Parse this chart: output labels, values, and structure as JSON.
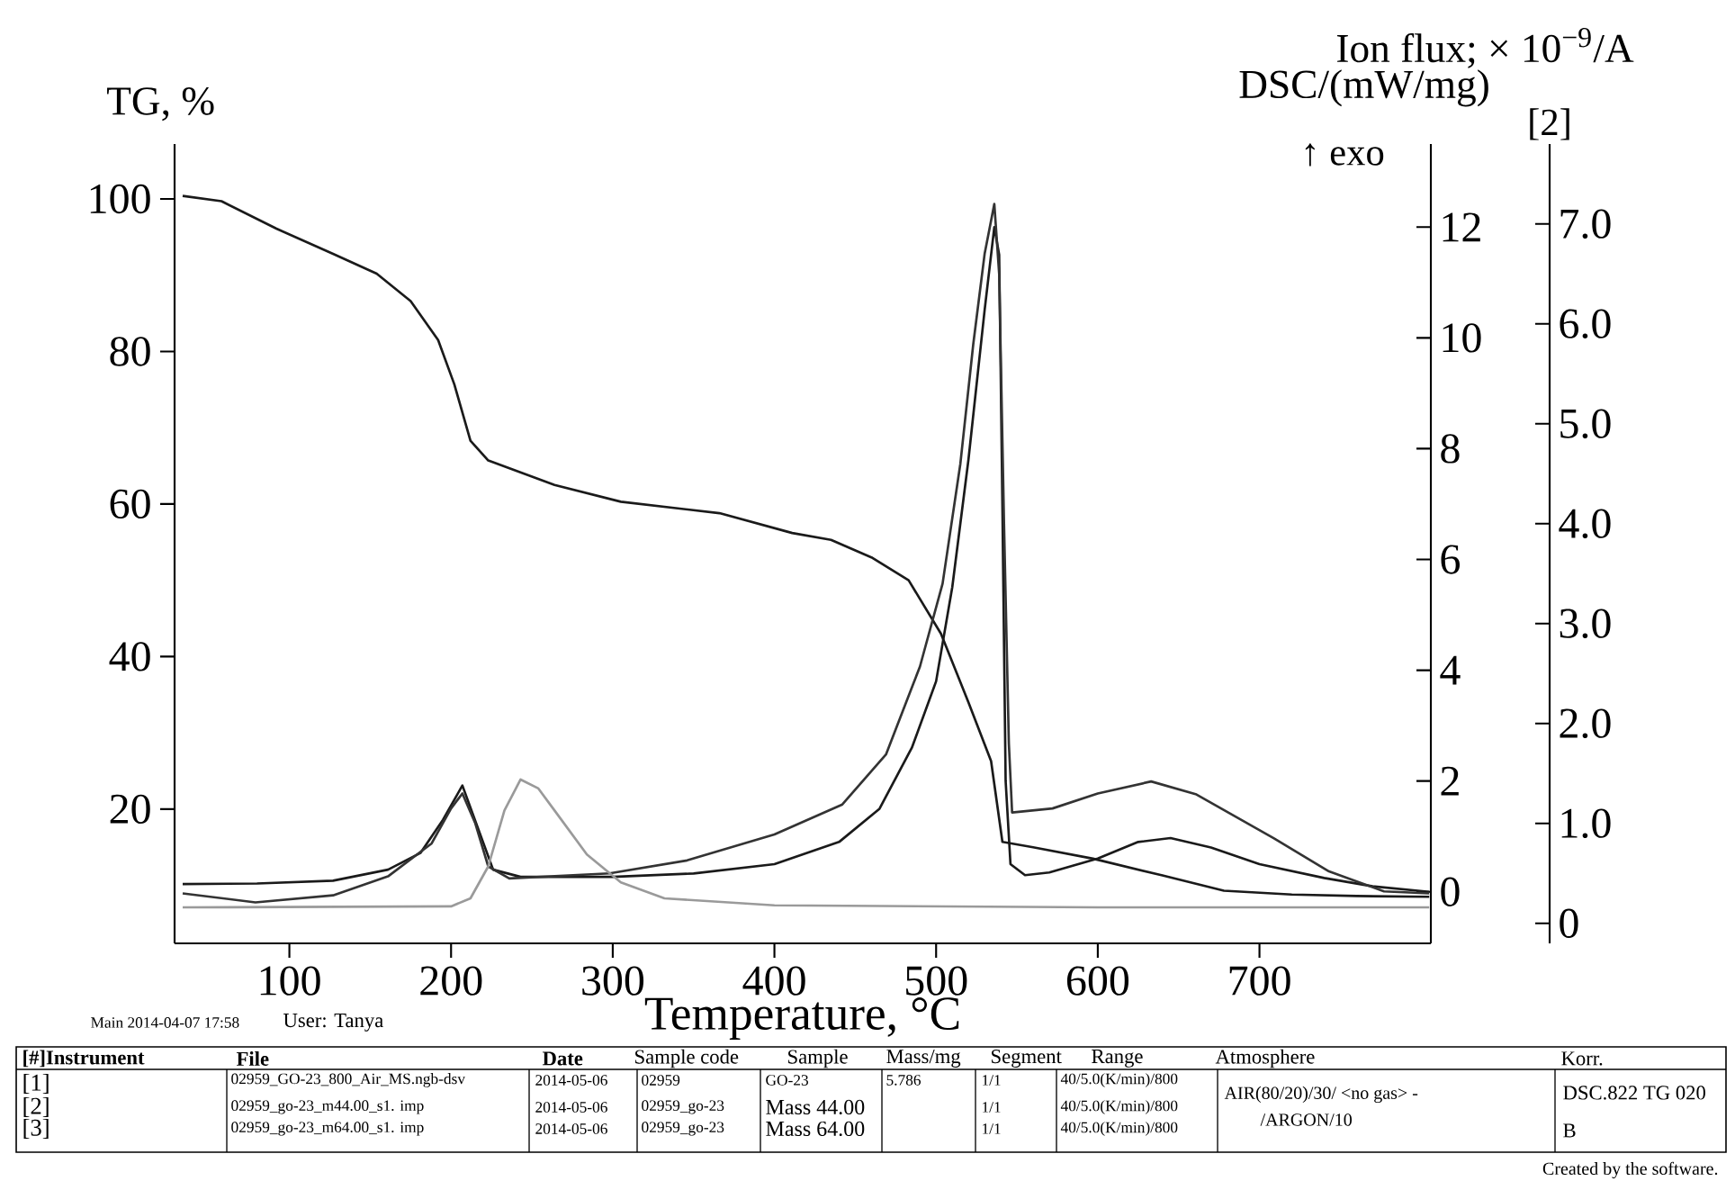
{
  "chart_data": {
    "type": "line",
    "xlabel": "Temperature, °C",
    "ylabel": "TG, %",
    "y2label": "DSC/(mW/mg)",
    "y3label": "Ion flux; × 10$^{−9}$/A",
    "xlim": [
      29,
      806
    ],
    "xticks": [
      100,
      200,
      300,
      400,
      500,
      600,
      700
    ],
    "ylim": [
      2.4,
      107.2
    ],
    "yticks": [
      20,
      40,
      60,
      80,
      100
    ],
    "y2lim": [
      -0.93,
      13.5
    ],
    "y2ticks": [
      0,
      2,
      4,
      6,
      8,
      10,
      12
    ],
    "y3lim": [
      -0.2,
      7.8
    ],
    "y3ticks": [
      0,
      {
        "value": 1,
        "label": "1.0"
      },
      {
        "value": 2,
        "label": "2.0"
      },
      {
        "value": 3,
        "label": "3.0"
      },
      {
        "value": 4,
        "label": "4.0"
      },
      {
        "value": 5,
        "label": "5.0"
      },
      {
        "value": 6,
        "label": "6.0"
      },
      {
        "value": 7,
        "label": "7.0"
      }
    ],
    "series": [
      {
        "axis": "y",
        "color": "#1a1a1a",
        "x": [
          34,
          58,
          92,
          127,
          154,
          175,
          192,
          202,
          212,
          223,
          264,
          305,
          366,
          411,
          435,
          460,
          483,
          503,
          520,
          534,
          541,
          560,
          597,
          640,
          678,
          720,
          760,
          805
        ],
        "values": [
          100.4,
          99.7,
          96.1,
          92.8,
          90.2,
          86.6,
          81.5,
          75.7,
          68.3,
          65.7,
          62.5,
          60.3,
          58.8,
          56.2,
          55.3,
          53,
          50,
          43,
          34,
          26.3,
          15.7,
          15,
          13.5,
          11.3,
          9.3,
          8.8,
          8.6,
          8.5
        ]
      },
      {
        "axis": "y2",
        "color": "#1a1a1a",
        "x": [
          34,
          80,
          127,
          161,
          181,
          195,
          207,
          216,
          226,
          243,
          300,
          350,
          400,
          440,
          465,
          485,
          500,
          510,
          520,
          530,
          536,
          539,
          541,
          543,
          546,
          555,
          570,
          600,
          625,
          645,
          670,
          700,
          740,
          770,
          805
        ],
        "values": [
          0.14,
          0.15,
          0.2,
          0.4,
          0.7,
          1.3,
          1.92,
          1.2,
          0.4,
          0.27,
          0.27,
          0.33,
          0.5,
          0.9,
          1.5,
          2.6,
          3.8,
          5.5,
          7.8,
          10.5,
          12.0,
          11.5,
          7,
          2,
          0.5,
          0.3,
          0.35,
          0.6,
          0.9,
          0.97,
          0.8,
          0.5,
          0.25,
          0.1,
          0.0
        ]
      },
      {
        "axis": "y3",
        "color": "#333333",
        "x": [
          34,
          79,
          127,
          161,
          188,
          200,
          207,
          215,
          223,
          236,
          298,
          346,
          400,
          442,
          469,
          490,
          504,
          515,
          523,
          530,
          536,
          539,
          542,
          545,
          547,
          572,
          600,
          633,
          661,
          709,
          743,
          777,
          805
        ],
        "values": [
          0.3,
          0.21,
          0.28,
          0.47,
          0.8,
          1.15,
          1.3,
          1.0,
          0.57,
          0.45,
          0.5,
          0.63,
          0.89,
          1.19,
          1.69,
          2.57,
          3.4,
          4.6,
          5.8,
          6.7,
          7.2,
          6.5,
          4,
          1.8,
          1.11,
          1.15,
          1.3,
          1.42,
          1.29,
          0.85,
          0.52,
          0.32,
          0.3
        ]
      },
      {
        "axis": "y3",
        "color": "#9a9a9a",
        "x": [
          34,
          200,
          212,
          223,
          233,
          243,
          254,
          264,
          284,
          305,
          332,
          400,
          600,
          805
        ],
        "values": [
          0.16,
          0.17,
          0.25,
          0.57,
          1.13,
          1.44,
          1.35,
          1.13,
          0.69,
          0.41,
          0.25,
          0.18,
          0.16,
          0.16
        ]
      }
    ],
    "annotations": [
      "Main 2014-04-07 17:58",
      "User: Tanya",
      "[#]Instrument",
      "File",
      "Date",
      "Sample code",
      "Sample",
      "Mass/mg",
      "Segment",
      "Range",
      "Atmosphere",
      "Korr.",
      "[1]",
      "02959_GO-23_800_Air_MS.ngb-dsv",
      "2014-05-06",
      "02959",
      "GO-23",
      "5.786",
      "1/1",
      "40/5.0(K/min)/800",
      "[2]",
      "02959_go-23_m44.00_s1. imp",
      "2014-05-06",
      "02959_go-23",
      "Mass 44.00",
      "1/1",
      "40/5.0(K/min)/800",
      "[3]",
      "02959_go-23_m64.00_s1. imp",
      "2014-05-06",
      "02959_go-23",
      "Mass 64.00",
      "1/1",
      "40/5.0(K/min)/800",
      "AIR(80/20)/30/ <no gas> -",
      "/ARGON/10",
      "DSC.822 TG 020",
      "B",
      "Created by the software.",
      "↑ exo",
      "[2]"
    ]
  }
}
